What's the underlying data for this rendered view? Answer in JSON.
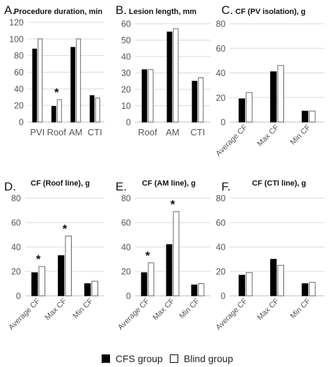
{
  "colors": {
    "cfs": "#000000",
    "blind": "#ffffff",
    "axis_text": "#555555",
    "grid": "#d9d9d9",
    "title": "#111111"
  },
  "legend": {
    "cfs_label": "CFS group",
    "blind_label": "Blind group"
  },
  "chart_data": [
    {
      "panel": "A.",
      "type": "bar",
      "title": "Procedure duration, min",
      "categories": [
        "PVI",
        "Roof",
        "AM",
        "CTI"
      ],
      "ylim": [
        0,
        120
      ],
      "yticks": [
        0,
        20,
        40,
        60,
        80,
        100,
        120
      ],
      "series": [
        {
          "name": "CFS group",
          "values": [
            88,
            19,
            90,
            32
          ]
        },
        {
          "name": "Blind group",
          "values": [
            100,
            27,
            100,
            29
          ]
        }
      ],
      "significance": [
        "",
        "*",
        "",
        ""
      ],
      "grid": true,
      "rotated_labels": false
    },
    {
      "panel": "B.",
      "type": "bar",
      "title": "Lesion length, mm",
      "categories": [
        "Roof",
        "AM",
        "CTI"
      ],
      "ylim": [
        0,
        60
      ],
      "yticks": [
        0,
        10,
        20,
        30,
        40,
        50,
        60
      ],
      "series": [
        {
          "name": "CFS group",
          "values": [
            32,
            55,
            25
          ]
        },
        {
          "name": "Blind group",
          "values": [
            32,
            57,
            27
          ]
        }
      ],
      "significance": [
        "",
        "",
        ""
      ],
      "grid": true,
      "rotated_labels": false
    },
    {
      "panel": "C.",
      "type": "bar",
      "title": "CF (PV isolation), g",
      "categories": [
        "Average CF",
        "Max CF",
        "Min CF"
      ],
      "ylim": [
        0,
        80
      ],
      "yticks": [
        0,
        20,
        40,
        60,
        80
      ],
      "series": [
        {
          "name": "CFS group",
          "values": [
            19,
            41,
            9
          ]
        },
        {
          "name": "Blind group",
          "values": [
            24,
            46,
            9
          ]
        }
      ],
      "significance": [
        "",
        "",
        ""
      ],
      "grid": true,
      "rotated_labels": true
    },
    {
      "panel": "D.",
      "type": "bar",
      "title": "CF (Roof line), g",
      "categories": [
        "Average CF",
        "Max CF",
        "Min CF"
      ],
      "ylim": [
        0,
        80
      ],
      "yticks": [
        0,
        20,
        40,
        60,
        80
      ],
      "series": [
        {
          "name": "CFS group",
          "values": [
            19,
            33,
            10
          ]
        },
        {
          "name": "Blind group",
          "values": [
            24,
            49,
            12
          ]
        }
      ],
      "significance": [
        "*",
        "*",
        ""
      ],
      "grid": true,
      "rotated_labels": true
    },
    {
      "panel": "E.",
      "type": "bar",
      "title": "CF (AM line), g",
      "categories": [
        "Average CF",
        "Max CF",
        "Min CF"
      ],
      "ylim": [
        0,
        80
      ],
      "yticks": [
        0,
        20,
        40,
        60,
        80
      ],
      "series": [
        {
          "name": "CFS group",
          "values": [
            19,
            42,
            9
          ]
        },
        {
          "name": "Blind group",
          "values": [
            27,
            69,
            10
          ]
        }
      ],
      "significance": [
        "*",
        "*",
        ""
      ],
      "grid": true,
      "rotated_labels": true
    },
    {
      "panel": "F.",
      "type": "bar",
      "title": "CF (CTI line), g",
      "categories": [
        "Average CF",
        "Max CF",
        "Min CF"
      ],
      "ylim": [
        0,
        80
      ],
      "yticks": [
        0,
        20,
        40,
        60,
        80
      ],
      "series": [
        {
          "name": "CFS group",
          "values": [
            17,
            30,
            10
          ]
        },
        {
          "name": "Blind group",
          "values": [
            19,
            25,
            11
          ]
        }
      ],
      "significance": [
        "",
        "",
        ""
      ],
      "grid": true,
      "rotated_labels": true
    }
  ]
}
